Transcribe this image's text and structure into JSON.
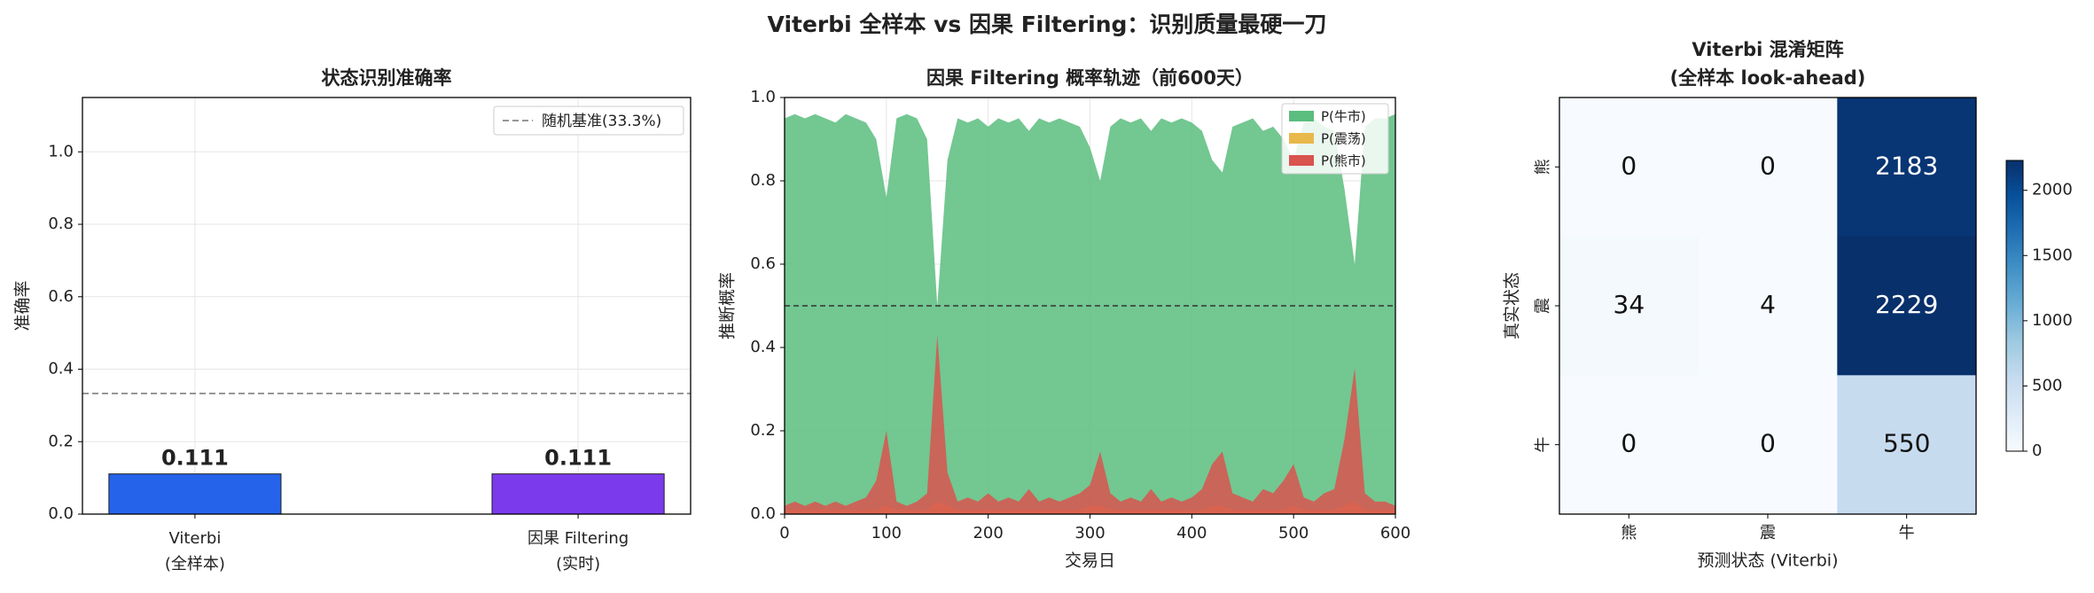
{
  "title": "Viterbi 全样本 vs 因果 Filtering：识别质量最硬一刀",
  "chart_data": [
    {
      "type": "bar",
      "title": "状态识别准确率",
      "ylabel": "准确率",
      "categories": [
        [
          "Viterbi",
          "(全样本)"
        ],
        [
          "因果 Filtering",
          "(实时)"
        ]
      ],
      "values": [
        0.111,
        0.111
      ],
      "colors": [
        "#2563eb",
        "#7c3aed"
      ],
      "ylim": [
        0,
        1.15
      ],
      "yticks": [
        {
          "value": 0,
          "label": "0.0"
        },
        0.2,
        0.4,
        0.6,
        0.8,
        {
          "value": 1,
          "label": "1.0"
        }
      ],
      "grid": true,
      "reference_line": {
        "value": 0.333,
        "label": "随机基准(33.3%)",
        "color": "#888888"
      },
      "legend": "upper right"
    },
    {
      "type": "area",
      "title": "因果 Filtering 概率轨迹（前600天）",
      "xlabel": "交易日",
      "ylabel": "推断概率",
      "x": [
        0,
        10,
        20,
        30,
        40,
        50,
        60,
        70,
        80,
        90,
        100,
        110,
        120,
        130,
        140,
        150,
        160,
        170,
        180,
        190,
        200,
        210,
        220,
        230,
        240,
        250,
        260,
        270,
        280,
        290,
        300,
        310,
        320,
        330,
        340,
        350,
        360,
        370,
        380,
        390,
        400,
        410,
        420,
        430,
        440,
        450,
        460,
        470,
        480,
        490,
        500,
        510,
        520,
        530,
        540,
        550,
        560,
        570,
        580,
        590,
        600
      ],
      "series": [
        {
          "name": "P(牛市)",
          "color": "#5bbd7e",
          "values": [
            0.95,
            0.96,
            0.95,
            0.96,
            0.95,
            0.94,
            0.96,
            0.95,
            0.94,
            0.9,
            0.76,
            0.95,
            0.96,
            0.95,
            0.9,
            0.5,
            0.85,
            0.95,
            0.94,
            0.95,
            0.93,
            0.95,
            0.94,
            0.95,
            0.92,
            0.95,
            0.94,
            0.95,
            0.94,
            0.93,
            0.88,
            0.8,
            0.93,
            0.95,
            0.94,
            0.95,
            0.92,
            0.95,
            0.94,
            0.95,
            0.94,
            0.92,
            0.85,
            0.82,
            0.93,
            0.94,
            0.95,
            0.92,
            0.93,
            0.9,
            0.85,
            0.94,
            0.95,
            0.93,
            0.92,
            0.78,
            0.6,
            0.93,
            0.95,
            0.95,
            0.96
          ]
        },
        {
          "name": "P(震荡)",
          "color": "#e8b84a",
          "values": [
            0.01,
            0.01,
            0.01,
            0.01,
            0.01,
            0.01,
            0.01,
            0.01,
            0.01,
            0.01,
            0.02,
            0.01,
            0.01,
            0.01,
            0.01,
            0.03,
            0.02,
            0.01,
            0.01,
            0.01,
            0.01,
            0.01,
            0.01,
            0.01,
            0.01,
            0.01,
            0.01,
            0.01,
            0.01,
            0.01,
            0.02,
            0.02,
            0.01,
            0.01,
            0.01,
            0.01,
            0.01,
            0.01,
            0.01,
            0.01,
            0.01,
            0.01,
            0.02,
            0.02,
            0.01,
            0.01,
            0.01,
            0.01,
            0.01,
            0.01,
            0.02,
            0.01,
            0.01,
            0.01,
            0.01,
            0.02,
            0.03,
            0.01,
            0.01,
            0.01,
            0.01
          ]
        },
        {
          "name": "P(熊市)",
          "color": "#d9534f",
          "values": [
            0.02,
            0.03,
            0.02,
            0.03,
            0.02,
            0.03,
            0.02,
            0.03,
            0.04,
            0.08,
            0.2,
            0.03,
            0.02,
            0.03,
            0.05,
            0.43,
            0.1,
            0.03,
            0.04,
            0.03,
            0.05,
            0.03,
            0.04,
            0.03,
            0.06,
            0.03,
            0.04,
            0.03,
            0.04,
            0.05,
            0.07,
            0.15,
            0.05,
            0.03,
            0.04,
            0.03,
            0.06,
            0.03,
            0.04,
            0.03,
            0.04,
            0.06,
            0.12,
            0.15,
            0.05,
            0.04,
            0.03,
            0.06,
            0.05,
            0.08,
            0.12,
            0.04,
            0.03,
            0.05,
            0.06,
            0.18,
            0.35,
            0.05,
            0.03,
            0.03,
            0.02
          ]
        }
      ],
      "xlim": [
        0,
        600
      ],
      "xticks": [
        0,
        100,
        200,
        300,
        400,
        500,
        600
      ],
      "ylim": [
        0,
        1
      ],
      "yticks": [
        {
          "value": 0,
          "label": "0.0"
        },
        0.2,
        0.4,
        0.6,
        0.8,
        {
          "value": 1,
          "label": "1.0"
        }
      ],
      "grid": true,
      "reference_line": {
        "value": 0.5,
        "color": "#333333"
      },
      "legend": "upper right"
    },
    {
      "type": "heatmap",
      "title": [
        "Viterbi 混淆矩阵",
        "(全样本 look-ahead)"
      ],
      "xlabel": "预测状态 (Viterbi)",
      "ylabel": "真实状态",
      "x_categories": [
        "熊",
        "震",
        "牛"
      ],
      "y_categories": [
        "熊",
        "震",
        "牛"
      ],
      "matrix": [
        [
          0,
          0,
          2183
        ],
        [
          34,
          4,
          2229
        ],
        [
          0,
          0,
          550
        ]
      ],
      "colormap": "Blues",
      "clim": [
        0,
        2229
      ],
      "colorbar_ticks": [
        0,
        500,
        1000,
        1500,
        2000
      ]
    }
  ]
}
